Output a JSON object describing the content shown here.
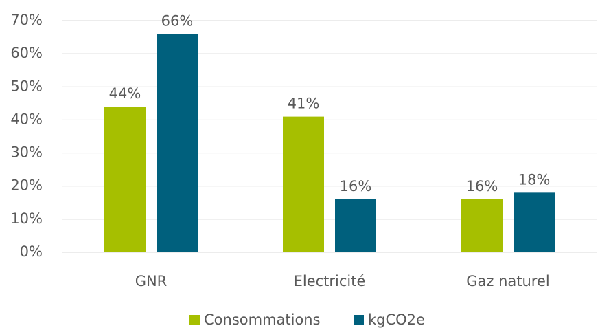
{
  "chart_data": {
    "type": "bar",
    "categories": [
      "GNR",
      "Electricité",
      "Gaz naturel"
    ],
    "series": [
      {
        "name": "Consommations",
        "color": "#a6bf00",
        "values": [
          44,
          41,
          16
        ],
        "value_labels": [
          "44%",
          "41%",
          "16%"
        ]
      },
      {
        "name": "kgCO2e",
        "color": "#00607d",
        "values": [
          66,
          16,
          18
        ],
        "value_labels": [
          "66%",
          "16%",
          "18%"
        ]
      }
    ],
    "ylim": [
      0,
      70
    ],
    "yticks": [
      {
        "value": 0,
        "label": "0%"
      },
      {
        "value": 10,
        "label": "10%"
      },
      {
        "value": 20,
        "label": "20%"
      },
      {
        "value": 30,
        "label": "30%"
      },
      {
        "value": 40,
        "label": "40%"
      },
      {
        "value": 50,
        "label": "50%"
      },
      {
        "value": 60,
        "label": "60%"
      },
      {
        "value": 70,
        "label": "70%"
      }
    ],
    "grid": true,
    "legend": "bottom"
  }
}
